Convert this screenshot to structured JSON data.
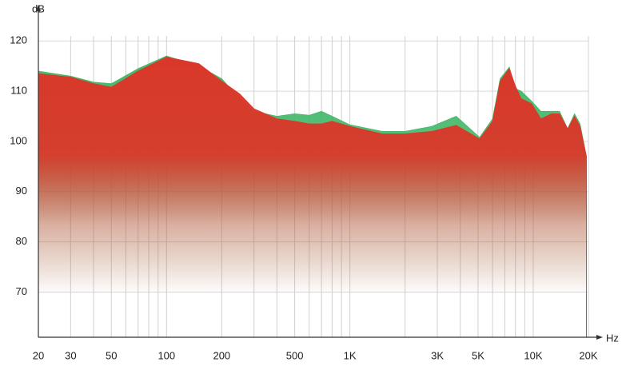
{
  "chart_data": {
    "type": "area",
    "y_label": "dB",
    "x_label": "Hz",
    "log_x": true,
    "grid": true,
    "xlim": [
      20,
      20000
    ],
    "ylim": [
      61,
      121
    ],
    "yticks": [
      70,
      80,
      90,
      100,
      110,
      120
    ],
    "xticks": [
      20,
      30,
      {
        "value": 40,
        "label": null
      },
      50,
      {
        "value": 60,
        "label": null
      },
      {
        "value": 70,
        "label": null
      },
      {
        "value": 80,
        "label": null
      },
      {
        "value": 90,
        "label": null
      },
      100,
      200,
      {
        "value": 300,
        "label": null
      },
      {
        "value": 400,
        "label": null
      },
      500,
      {
        "value": 600,
        "label": null
      },
      {
        "value": 700,
        "label": null
      },
      {
        "value": 800,
        "label": null
      },
      {
        "value": 900,
        "label": null
      },
      {
        "value": 1000,
        "label": "1K"
      },
      {
        "value": 2000,
        "label": null
      },
      {
        "value": 3000,
        "label": "3K"
      },
      {
        "value": 4000,
        "label": null
      },
      {
        "value": 5000,
        "label": "5K"
      },
      {
        "value": 6000,
        "label": null
      },
      {
        "value": 7000,
        "label": null
      },
      {
        "value": 8000,
        "label": null
      },
      {
        "value": 9000,
        "label": null
      },
      {
        "value": 10000,
        "label": "10K"
      },
      {
        "value": 20000,
        "label": "20K"
      }
    ],
    "x": [
      20,
      30,
      40,
      50,
      70,
      100,
      150,
      200,
      250,
      300,
      400,
      500,
      600,
      700,
      800,
      1000,
      1500,
      2000,
      2800,
      3800,
      5100,
      6000,
      6600,
      7400,
      8000,
      8600,
      9800,
      11000,
      12600,
      13900,
      15400,
      16800,
      18000,
      19500
    ],
    "series": [
      {
        "color": "#45b86a",
        "values": [
          114,
          113,
          111.8,
          111.5,
          114.5,
          117,
          115,
          112.5,
          108.5,
          106,
          105,
          105.5,
          105.2,
          106,
          105,
          103.3,
          102,
          102,
          103,
          105,
          100.8,
          104.5,
          112.5,
          114.8,
          110.5,
          110,
          108,
          106,
          106,
          106,
          102.5,
          105.5,
          103.5,
          97
        ]
      },
      {
        "color": "#d9382a",
        "values": [
          113.5,
          112.8,
          111.5,
          110.8,
          114,
          116.8,
          115.5,
          112,
          109.5,
          106.5,
          104.5,
          104,
          103.5,
          103.5,
          104,
          103,
          101.5,
          101.5,
          102,
          103.2,
          100.5,
          104,
          112,
          114.5,
          111,
          108.5,
          107.5,
          104.5,
          105.5,
          105.5,
          102.5,
          105,
          103,
          97
        ]
      }
    ]
  }
}
